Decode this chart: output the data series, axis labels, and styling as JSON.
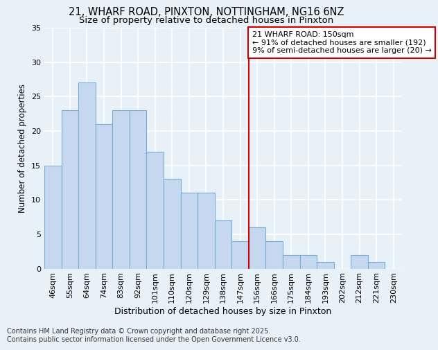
{
  "title": "21, WHARF ROAD, PINXTON, NOTTINGHAM, NG16 6NZ",
  "subtitle": "Size of property relative to detached houses in Pinxton",
  "xlabel": "Distribution of detached houses by size in Pinxton",
  "ylabel": "Number of detached properties",
  "bar_labels": [
    "46sqm",
    "55sqm",
    "64sqm",
    "74sqm",
    "83sqm",
    "92sqm",
    "101sqm",
    "110sqm",
    "120sqm",
    "129sqm",
    "138sqm",
    "147sqm",
    "156sqm",
    "166sqm",
    "175sqm",
    "184sqm",
    "193sqm",
    "202sqm",
    "212sqm",
    "221sqm",
    "230sqm"
  ],
  "bar_values": [
    15,
    23,
    27,
    21,
    23,
    23,
    17,
    13,
    11,
    11,
    7,
    4,
    6,
    4,
    2,
    2,
    1,
    0,
    2,
    1,
    0
  ],
  "bar_color": "#c5d8ef",
  "bar_edge_color": "#7aadd4",
  "background_color": "#e8f0f8",
  "grid_color": "#ffffff",
  "vline_x": 11.5,
  "vline_color": "#cc0000",
  "annotation_line1": "21 WHARF ROAD: 150sqm",
  "annotation_line2": "← 91% of detached houses are smaller (192)",
  "annotation_line3": "9% of semi-detached houses are larger (20) →",
  "annotation_box_color": "#cc0000",
  "ylim": [
    0,
    35
  ],
  "yticks": [
    0,
    5,
    10,
    15,
    20,
    25,
    30,
    35
  ],
  "footer_text": "Contains HM Land Registry data © Crown copyright and database right 2025.\nContains public sector information licensed under the Open Government Licence v3.0.",
  "title_fontsize": 10.5,
  "subtitle_fontsize": 9.5,
  "xlabel_fontsize": 9,
  "ylabel_fontsize": 8.5,
  "tick_fontsize": 8,
  "annotation_fontsize": 8,
  "footer_fontsize": 7
}
